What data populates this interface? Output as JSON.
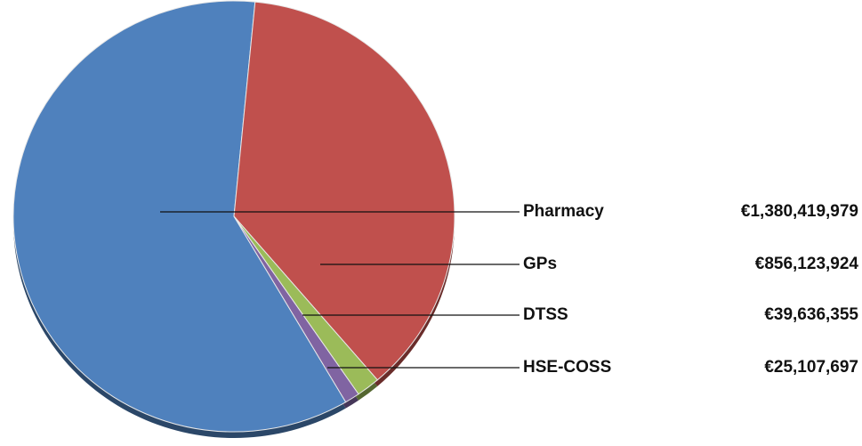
{
  "chart_data": {
    "type": "pie",
    "categories": [
      "Pharmacy",
      "GPs",
      "DTSS",
      "HSE-COSS"
    ],
    "values": [
      1380419979,
      856123924,
      39636355,
      25107697
    ],
    "value_labels": [
      "€1,380,419,979",
      "€856,123,924",
      "€39,636,355",
      "€25,107,697"
    ],
    "colors": [
      "#4f81bd",
      "#c0504d",
      "#9bbb59",
      "#8064a2"
    ]
  }
}
